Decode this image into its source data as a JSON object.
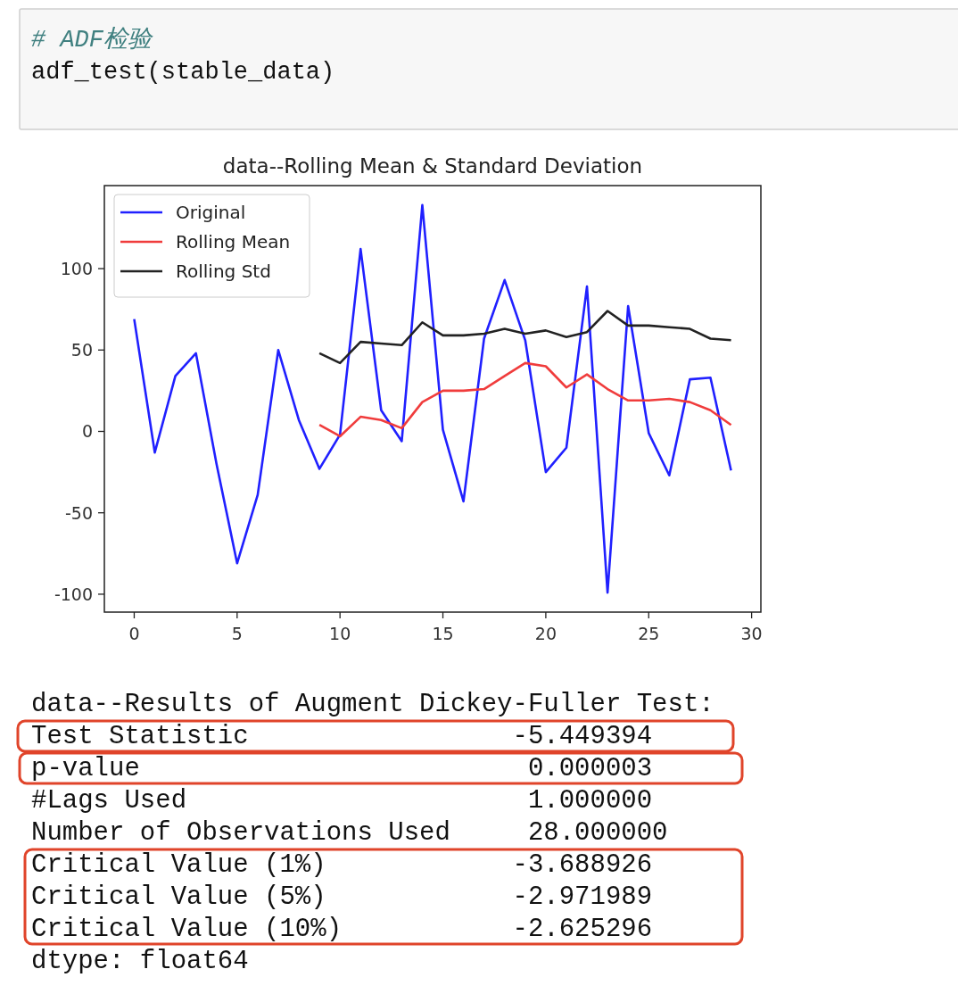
{
  "chart_data": {
    "type": "line",
    "title": "data--Rolling Mean & Standard Deviation",
    "x": [
      0,
      1,
      2,
      3,
      4,
      5,
      6,
      7,
      8,
      9,
      10,
      11,
      12,
      13,
      14,
      15,
      16,
      17,
      18,
      19,
      20,
      21,
      22,
      23,
      24,
      25,
      26,
      27,
      28,
      29
    ],
    "series": [
      {
        "name": "Original",
        "color": "#2020ff",
        "values": [
          69,
          -13,
          34,
          48,
          -20,
          -81,
          -39,
          50,
          7,
          -23,
          -2,
          112,
          13,
          -6,
          139,
          1,
          -43,
          57,
          93,
          56,
          -25,
          -10,
          89,
          -99,
          77,
          -1,
          -27,
          32,
          33,
          -24
        ]
      },
      {
        "name": "Rolling Mean",
        "color": "#f03c3c",
        "values": [
          null,
          null,
          null,
          null,
          null,
          null,
          null,
          null,
          null,
          4,
          -3,
          9,
          7,
          2,
          18,
          25,
          25,
          26,
          34,
          42,
          40,
          27,
          35,
          26,
          19,
          19,
          20,
          18,
          13,
          4
        ]
      },
      {
        "name": "Rolling Std",
        "color": "#222222",
        "values": [
          null,
          null,
          null,
          null,
          null,
          null,
          null,
          null,
          null,
          48,
          42,
          55,
          54,
          53,
          67,
          59,
          59,
          60,
          63,
          60,
          62,
          58,
          61,
          74,
          65,
          65,
          64,
          63,
          57,
          56
        ]
      }
    ],
    "xlim": [
      -1.45,
      30.45
    ],
    "ylim": [
      -111,
      151
    ],
    "xticks": [
      0,
      5,
      10,
      15,
      20,
      25,
      30
    ],
    "yticks": [
      -100,
      -50,
      0,
      50,
      100
    ],
    "grid": false,
    "legend": "top left",
    "annotations": [
      "# ADF检验",
      "adf_test(stable_data)",
      "data--Results of Augment Dickey-Fuller Test:",
      "Test Statistic                 -5.449394",
      "p-value                         0.000003",
      "#Lags Used                      1.000000",
      "Number of Observations Used     28.000000",
      "Critical Value (1%)            -3.688926",
      "Critical Value (5%)            -2.971989",
      "Critical Value (10%)           -2.625296",
      "dtype: float64"
    ]
  }
}
